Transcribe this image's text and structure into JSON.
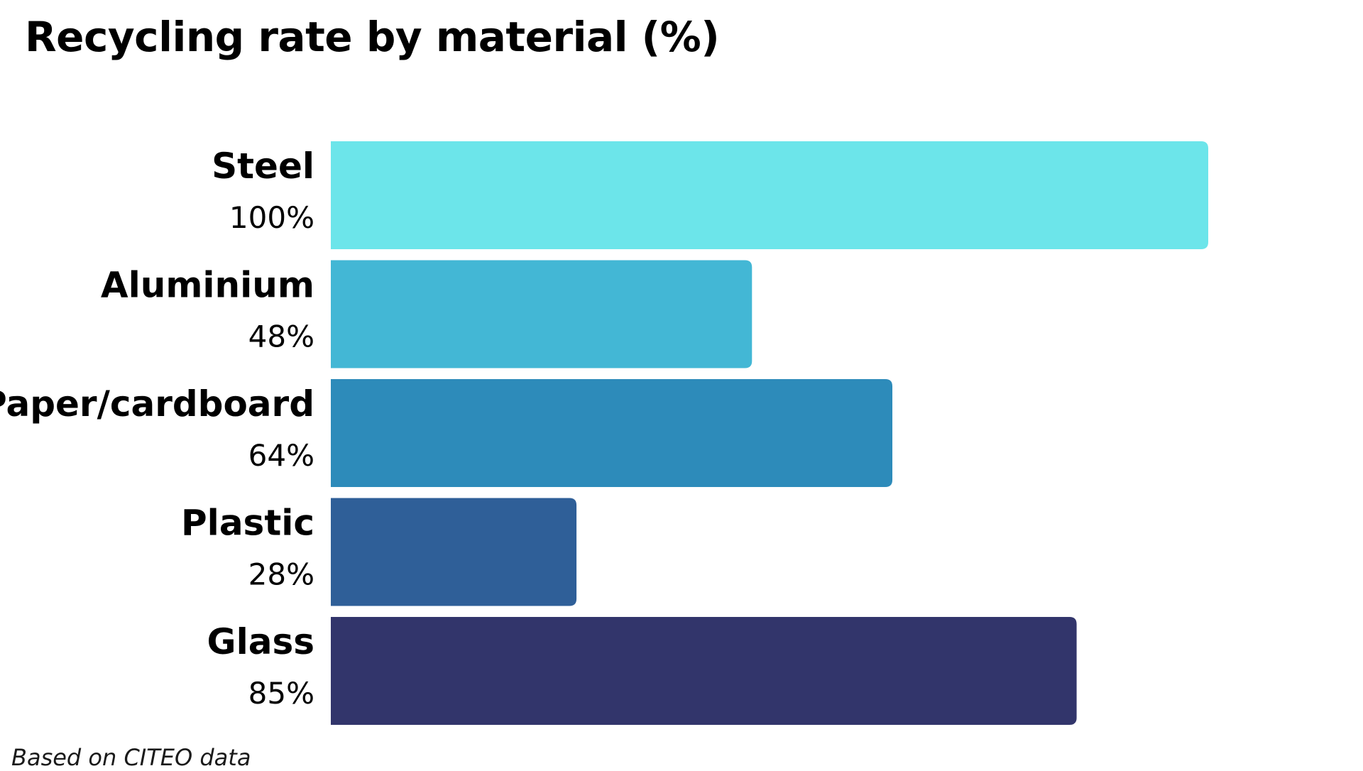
{
  "chart_data": {
    "type": "bar",
    "orientation": "horizontal",
    "title": "Recycling rate by material (%)",
    "categories": [
      "Steel",
      "Aluminium",
      "Paper/cardboard",
      "Plastic",
      "Glass"
    ],
    "values": [
      100,
      48,
      64,
      28,
      85
    ],
    "value_labels": [
      "100%",
      "48%",
      "64%",
      "28%",
      "85%"
    ],
    "colors": [
      "#6ce5ea",
      "#43b7d5",
      "#2d8bba",
      "#2f5f98",
      "#32356b"
    ],
    "xlim": [
      0,
      100
    ],
    "grid": false,
    "legend": "none"
  },
  "footer": {
    "source": "Based on CITEO data"
  }
}
